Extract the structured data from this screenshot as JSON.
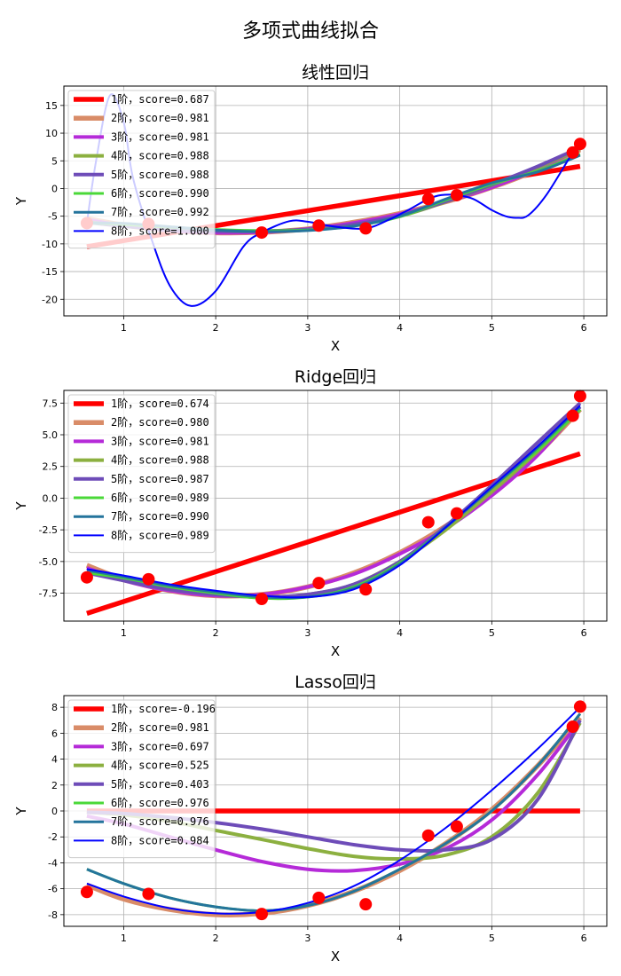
{
  "chart_data": {
    "type": "line",
    "suptitle": "多项式曲线拟合",
    "points": {
      "x": [
        0.6,
        1.27,
        2.5,
        3.12,
        3.63,
        4.31,
        4.62,
        5.88,
        5.96
      ],
      "y": [
        -6.25,
        -6.4,
        -7.95,
        -6.7,
        -7.2,
        -1.9,
        -1.2,
        6.5,
        8.05
      ]
    },
    "series_colors": [
      "#ff0000",
      "#d98c68",
      "#b52ad8",
      "#8cb040",
      "#6e4cb8",
      "#4ad838",
      "#24749c",
      "#0000ff"
    ],
    "series_widths": [
      5.5,
      5.5,
      4.0,
      4.0,
      4.0,
      3.0,
      3.0,
      2.0
    ],
    "subplots": [
      {
        "title": "线性回归",
        "xlabel": "X",
        "ylabel": "Y",
        "xlim": [
          0.35,
          6.25
        ],
        "ylim": [
          -23.0,
          18.5
        ],
        "xticks": [
          1,
          2,
          3,
          4,
          5,
          6
        ],
        "yticks": [
          -20,
          -15,
          -10,
          -5,
          0,
          5,
          10,
          15
        ],
        "grid": true,
        "legend_position": "upper-left",
        "series": [
          {
            "name": "1阶，score=0.687",
            "x": [
              0.6,
              5.96
            ],
            "y": [
              -10.5,
              4.0
            ]
          },
          {
            "name": "2阶，score=0.981",
            "x": [
              0.6,
              1.0,
              1.5,
              2.0,
              2.5,
              3.0,
              3.5,
              4.0,
              4.5,
              5.0,
              5.5,
              5.96
            ],
            "y": [
              -5.4,
              -6.6,
              -7.6,
              -8.0,
              -7.9,
              -7.3,
              -6.1,
              -4.5,
              -2.4,
              0.2,
              3.4,
              7.0
            ]
          },
          {
            "name": "3阶，score=0.981",
            "x": [
              0.6,
              1.0,
              1.5,
              2.0,
              2.5,
              3.0,
              3.5,
              4.0,
              4.5,
              5.0,
              5.5,
              5.96
            ],
            "y": [
              -5.6,
              -6.7,
              -7.6,
              -8.0,
              -7.9,
              -7.3,
              -6.2,
              -4.6,
              -2.4,
              0.2,
              3.5,
              7.2
            ]
          },
          {
            "name": "4阶，score=0.988",
            "x": [
              0.6,
              1.0,
              1.5,
              2.0,
              2.5,
              3.0,
              3.5,
              4.0,
              4.5,
              5.0,
              5.5,
              5.96
            ],
            "y": [
              -6.0,
              -6.8,
              -7.4,
              -7.7,
              -7.7,
              -7.4,
              -6.6,
              -5.0,
              -2.4,
              0.6,
              3.8,
              7.2
            ]
          },
          {
            "name": "5阶，score=0.988",
            "x": [
              0.6,
              1.0,
              1.5,
              2.0,
              2.5,
              3.0,
              3.5,
              4.0,
              4.5,
              5.0,
              5.5,
              5.96
            ],
            "y": [
              -6.1,
              -6.8,
              -7.4,
              -7.7,
              -7.7,
              -7.4,
              -6.5,
              -4.9,
              -2.3,
              0.7,
              4.0,
              7.4
            ]
          },
          {
            "name": "6阶，score=0.990",
            "x": [
              0.6,
              1.0,
              1.5,
              2.0,
              2.5,
              3.0,
              3.5,
              4.0,
              4.5,
              5.0,
              5.5,
              5.96
            ],
            "y": [
              -6.2,
              -6.5,
              -7.0,
              -7.4,
              -7.6,
              -7.5,
              -6.8,
              -5.1,
              -2.1,
              0.8,
              3.2,
              6.2
            ]
          },
          {
            "name": "7阶，score=0.992",
            "x": [
              0.6,
              1.0,
              1.5,
              2.0,
              2.5,
              3.0,
              3.5,
              4.0,
              4.5,
              5.0,
              5.5,
              5.96
            ],
            "y": [
              -6.2,
              -6.3,
              -6.9,
              -7.5,
              -7.8,
              -7.6,
              -6.8,
              -5.0,
              -1.9,
              1.0,
              3.0,
              6.0
            ]
          },
          {
            "name": "8阶，score=1.000",
            "x": [
              0.6,
              0.7,
              0.85,
              1.0,
              1.1,
              1.3,
              1.5,
              1.73,
              2.0,
              2.3,
              2.5,
              2.8,
              3.0,
              3.3,
              3.63,
              3.9,
              4.1,
              4.31,
              4.45,
              4.62,
              4.8,
              5.0,
              5.15,
              5.27,
              5.4,
              5.6,
              5.88,
              5.96
            ],
            "y": [
              -6.25,
              5.0,
              16.8,
              12.0,
              2.0,
              -9.0,
              -17.5,
              -21.2,
              -18.5,
              -10.5,
              -7.95,
              -5.9,
              -6.0,
              -6.9,
              -7.2,
              -5.5,
              -3.8,
              -1.9,
              -1.2,
              -1.2,
              -1.9,
              -3.9,
              -5.0,
              -5.3,
              -4.8,
              -1.0,
              6.5,
              8.05
            ]
          }
        ]
      },
      {
        "title": "Ridge回归",
        "xlabel": "X",
        "ylabel": "Y",
        "xlim": [
          0.35,
          6.25
        ],
        "ylim": [
          -9.7,
          8.5
        ],
        "xticks": [
          1,
          2,
          3,
          4,
          5,
          6
        ],
        "yticks": [
          -7.5,
          -5.0,
          -2.5,
          0.0,
          2.5,
          5.0,
          7.5
        ],
        "grid": true,
        "legend_position": "upper-left",
        "series": [
          {
            "name": "1阶，score=0.674",
            "x": [
              0.6,
              5.96
            ],
            "y": [
              -9.1,
              3.5
            ]
          },
          {
            "name": "2阶，score=0.980",
            "x": [
              0.6,
              1.0,
              1.5,
              2.0,
              2.5,
              3.0,
              3.5,
              4.0,
              4.5,
              5.0,
              5.5,
              5.96
            ],
            "y": [
              -5.3,
              -6.4,
              -7.3,
              -7.7,
              -7.6,
              -7.0,
              -5.9,
              -4.3,
              -2.2,
              0.4,
              3.5,
              7.0
            ]
          },
          {
            "name": "3阶，score=0.981",
            "x": [
              0.6,
              1.0,
              1.5,
              2.0,
              2.5,
              3.0,
              3.5,
              4.0,
              4.5,
              5.0,
              5.5,
              5.96
            ],
            "y": [
              -5.5,
              -6.5,
              -7.3,
              -7.7,
              -7.6,
              -7.0,
              -6.0,
              -4.4,
              -2.4,
              0.2,
              3.4,
              7.2
            ]
          },
          {
            "name": "4阶，score=0.988",
            "x": [
              0.6,
              1.0,
              1.5,
              2.0,
              2.5,
              3.0,
              3.5,
              4.0,
              4.5,
              5.0,
              5.5,
              5.96
            ],
            "y": [
              -5.8,
              -6.5,
              -7.2,
              -7.6,
              -7.8,
              -7.6,
              -6.8,
              -5.0,
              -2.5,
              0.5,
              3.7,
              7.0
            ]
          },
          {
            "name": "5阶，score=0.987",
            "x": [
              0.6,
              1.0,
              1.5,
              2.0,
              2.5,
              3.0,
              3.5,
              4.0,
              4.5,
              5.0,
              5.5,
              5.96
            ],
            "y": [
              -5.9,
              -6.5,
              -7.2,
              -7.6,
              -7.8,
              -7.6,
              -6.8,
              -5.0,
              -2.2,
              1.0,
              4.4,
              7.5
            ]
          },
          {
            "name": "6阶，score=0.989",
            "x": [
              0.6,
              1.0,
              1.5,
              2.0,
              2.5,
              3.0,
              3.5,
              4.0,
              4.5,
              5.0,
              5.5,
              5.96
            ],
            "y": [
              -5.9,
              -6.3,
              -7.0,
              -7.5,
              -7.9,
              -7.8,
              -7.0,
              -5.1,
              -2.3,
              0.8,
              3.8,
              7.0
            ]
          },
          {
            "name": "7阶，score=0.990",
            "x": [
              0.6,
              1.0,
              1.5,
              2.0,
              2.5,
              3.0,
              3.5,
              4.0,
              4.5,
              5.0,
              5.5,
              5.96
            ],
            "y": [
              -5.7,
              -6.2,
              -6.9,
              -7.4,
              -7.8,
              -7.8,
              -7.1,
              -5.2,
              -2.3,
              0.8,
              4.0,
              7.2
            ]
          },
          {
            "name": "8阶，score=0.989",
            "x": [
              0.6,
              1.0,
              1.5,
              2.0,
              2.5,
              3.0,
              3.5,
              4.0,
              4.5,
              5.0,
              5.5,
              5.96
            ],
            "y": [
              -5.6,
              -6.1,
              -6.8,
              -7.3,
              -7.7,
              -7.8,
              -7.2,
              -5.3,
              -2.3,
              0.9,
              4.1,
              7.3
            ]
          }
        ]
      },
      {
        "title": "Lasso回归",
        "xlabel": "X",
        "ylabel": "Y",
        "xlim": [
          0.35,
          6.25
        ],
        "ylim": [
          -8.9,
          8.9
        ],
        "xticks": [
          1,
          2,
          3,
          4,
          5,
          6
        ],
        "yticks": [
          -8,
          -6,
          -4,
          -2,
          0,
          2,
          4,
          6,
          8
        ],
        "grid": true,
        "legend_position": "upper-left",
        "series": [
          {
            "name": "1阶，score=-0.196",
            "x": [
              0.6,
              5.96
            ],
            "y": [
              0.0,
              0.0
            ]
          },
          {
            "name": "2阶，score=0.981",
            "x": [
              0.6,
              1.0,
              1.5,
              2.0,
              2.5,
              3.0,
              3.5,
              4.0,
              4.5,
              5.0,
              5.5,
              5.96
            ],
            "y": [
              -5.7,
              -6.8,
              -7.6,
              -8.0,
              -7.9,
              -7.3,
              -6.2,
              -4.6,
              -2.5,
              0.1,
              3.5,
              7.2
            ]
          },
          {
            "name": "3阶，score=0.697",
            "x": [
              0.6,
              1.0,
              1.5,
              2.0,
              2.5,
              3.0,
              3.5,
              4.0,
              4.5,
              5.0,
              5.5,
              5.96
            ],
            "y": [
              -0.4,
              -1.0,
              -2.0,
              -3.0,
              -3.9,
              -4.5,
              -4.6,
              -4.1,
              -2.9,
              -0.7,
              2.8,
              7.0
            ]
          },
          {
            "name": "4阶，score=0.525",
            "x": [
              0.6,
              1.0,
              1.5,
              2.0,
              2.5,
              3.0,
              3.5,
              4.0,
              4.5,
              5.0,
              5.5,
              5.96
            ],
            "y": [
              -0.1,
              -0.3,
              -0.8,
              -1.5,
              -2.2,
              -2.9,
              -3.5,
              -3.7,
              -3.4,
              -2.0,
              1.4,
              6.8
            ]
          },
          {
            "name": "5阶，score=0.403",
            "x": [
              0.6,
              1.0,
              1.5,
              2.0,
              2.5,
              3.0,
              3.5,
              4.0,
              4.5,
              5.0,
              5.5,
              5.96
            ],
            "y": [
              -0.1,
              -0.2,
              -0.5,
              -0.9,
              -1.4,
              -2.0,
              -2.6,
              -3.0,
              -3.0,
              -2.2,
              0.9,
              7.0
            ]
          },
          {
            "name": "6阶，score=0.976",
            "x": [
              0.6,
              1.0,
              1.5,
              2.0,
              2.5,
              3.0,
              3.5,
              4.0,
              4.5,
              5.0,
              5.5,
              5.96
            ],
            "y": [
              -4.5,
              -5.6,
              -6.7,
              -7.4,
              -7.7,
              -7.3,
              -6.2,
              -4.5,
              -2.5,
              0.0,
              3.5,
              7.5
            ]
          },
          {
            "name": "7阶，score=0.976",
            "x": [
              0.6,
              1.0,
              1.5,
              2.0,
              2.5,
              3.0,
              3.5,
              4.0,
              4.5,
              5.0,
              5.5,
              5.96
            ],
            "y": [
              -4.5,
              -5.6,
              -6.7,
              -7.4,
              -7.7,
              -7.3,
              -6.2,
              -4.5,
              -2.5,
              0.0,
              3.5,
              7.5
            ]
          },
          {
            "name": "8阶，score=0.984",
            "x": [
              0.6,
              1.0,
              1.5,
              2.0,
              2.5,
              3.0,
              3.5,
              4.0,
              4.5,
              5.0,
              5.5,
              5.96
            ],
            "y": [
              -5.6,
              -6.6,
              -7.5,
              -7.9,
              -7.8,
              -7.1,
              -5.8,
              -3.8,
              -1.3,
              1.6,
              4.8,
              8.0
            ]
          }
        ]
      }
    ]
  }
}
